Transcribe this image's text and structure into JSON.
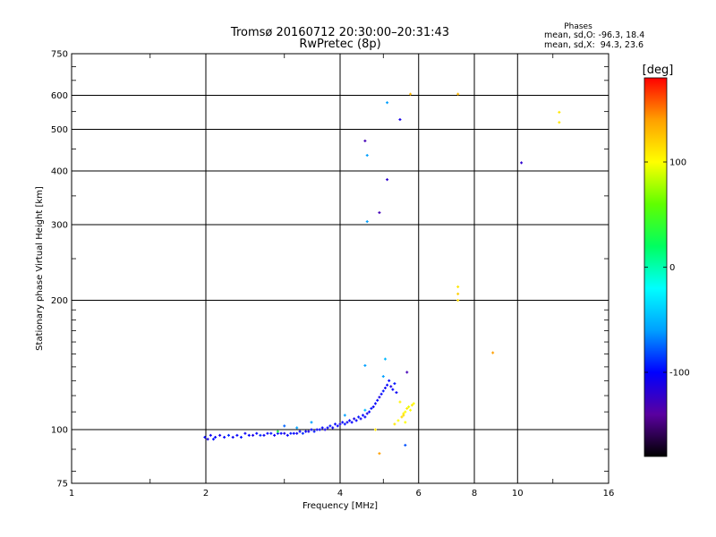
{
  "title_line1": "Tromsø 20160712 20:30:00–20:31:43",
  "title_line2": "RwPretec (8p)",
  "phases": {
    "title": "Phases",
    "line1": "mean, sd,O: -96.3, 18.4",
    "line2": "mean, sd,X:  94.3, 23.6"
  },
  "xlabel": "Frequency [MHz]",
  "ylabel": "Stationary phase Virtual Height [km]",
  "colorbar_label": "[deg]",
  "chart_data": {
    "type": "scatter",
    "xscale": "log",
    "yscale": "log",
    "xlim": [
      1,
      16
    ],
    "ylim": [
      75,
      750
    ],
    "grid": true,
    "xticks": [
      1,
      2,
      4,
      6,
      8,
      10,
      16
    ],
    "xtick_labels": [
      "1",
      "2",
      "4",
      "6",
      "8",
      "10",
      "16"
    ],
    "yticks": [
      75,
      100,
      200,
      300,
      400,
      500,
      600,
      750
    ],
    "ytick_labels": [
      "75",
      "100",
      "200",
      "300",
      "400",
      "500",
      "600",
      "750"
    ],
    "colorbar": {
      "range": [
        -180,
        180
      ],
      "ticks": [
        100,
        0,
        -100
      ],
      "tick_labels": [
        "100",
        "0",
        "-100"
      ],
      "colors": [
        "#000000",
        "#5a00a0",
        "#0000ff",
        "#00a0ff",
        "#00ffff",
        "#00ff60",
        "#60ff00",
        "#ffff00",
        "#ffa000",
        "#ff0000"
      ]
    },
    "points": [
      {
        "x": 1.99,
        "y": 96,
        "c": -100
      },
      {
        "x": 2.02,
        "y": 95,
        "c": -110
      },
      {
        "x": 2.05,
        "y": 97,
        "c": -105
      },
      {
        "x": 2.08,
        "y": 95,
        "c": -95
      },
      {
        "x": 2.1,
        "y": 96,
        "c": -100
      },
      {
        "x": 2.15,
        "y": 97,
        "c": -110
      },
      {
        "x": 2.2,
        "y": 96,
        "c": -100
      },
      {
        "x": 2.25,
        "y": 97,
        "c": -90
      },
      {
        "x": 2.3,
        "y": 96,
        "c": -105
      },
      {
        "x": 2.35,
        "y": 97,
        "c": -100
      },
      {
        "x": 2.4,
        "y": 96,
        "c": -95
      },
      {
        "x": 2.45,
        "y": 98,
        "c": -105
      },
      {
        "x": 2.5,
        "y": 97,
        "c": -100
      },
      {
        "x": 2.55,
        "y": 97,
        "c": -110
      },
      {
        "x": 2.6,
        "y": 98,
        "c": -100
      },
      {
        "x": 2.65,
        "y": 97,
        "c": -90
      },
      {
        "x": 2.7,
        "y": 97,
        "c": -105
      },
      {
        "x": 2.75,
        "y": 98,
        "c": -100
      },
      {
        "x": 2.8,
        "y": 98,
        "c": -95
      },
      {
        "x": 2.85,
        "y": 97,
        "c": -105
      },
      {
        "x": 2.9,
        "y": 98,
        "c": -100
      },
      {
        "x": 2.95,
        "y": 98,
        "c": -100
      },
      {
        "x": 3.0,
        "y": 98,
        "c": -110
      },
      {
        "x": 3.05,
        "y": 97,
        "c": -100
      },
      {
        "x": 3.1,
        "y": 98,
        "c": -95
      },
      {
        "x": 3.15,
        "y": 98,
        "c": -100
      },
      {
        "x": 3.2,
        "y": 98,
        "c": -105
      },
      {
        "x": 3.25,
        "y": 99,
        "c": -100
      },
      {
        "x": 3.3,
        "y": 98,
        "c": -90
      },
      {
        "x": 3.35,
        "y": 99,
        "c": -100
      },
      {
        "x": 3.4,
        "y": 99,
        "c": -110
      },
      {
        "x": 3.45,
        "y": 100,
        "c": -100
      },
      {
        "x": 3.5,
        "y": 99,
        "c": -95
      },
      {
        "x": 3.55,
        "y": 100,
        "c": -105
      },
      {
        "x": 3.6,
        "y": 100,
        "c": -100
      },
      {
        "x": 3.65,
        "y": 101,
        "c": -100
      },
      {
        "x": 3.7,
        "y": 100,
        "c": -110
      },
      {
        "x": 3.75,
        "y": 101,
        "c": -100
      },
      {
        "x": 3.8,
        "y": 102,
        "c": -95
      },
      {
        "x": 3.85,
        "y": 101,
        "c": -105
      },
      {
        "x": 3.9,
        "y": 103,
        "c": -100
      },
      {
        "x": 3.95,
        "y": 102,
        "c": -100
      },
      {
        "x": 4.0,
        "y": 103,
        "c": -110
      },
      {
        "x": 4.05,
        "y": 104,
        "c": -100
      },
      {
        "x": 4.1,
        "y": 103,
        "c": -95
      },
      {
        "x": 4.15,
        "y": 104,
        "c": -105
      },
      {
        "x": 4.2,
        "y": 105,
        "c": -100
      },
      {
        "x": 4.25,
        "y": 104,
        "c": -100
      },
      {
        "x": 4.3,
        "y": 106,
        "c": -110
      },
      {
        "x": 4.35,
        "y": 105,
        "c": -100
      },
      {
        "x": 4.4,
        "y": 107,
        "c": -95
      },
      {
        "x": 4.45,
        "y": 106,
        "c": -105
      },
      {
        "x": 4.5,
        "y": 108,
        "c": -100
      },
      {
        "x": 4.55,
        "y": 107,
        "c": -100
      },
      {
        "x": 4.6,
        "y": 109,
        "c": -110
      },
      {
        "x": 4.65,
        "y": 110,
        "c": -100
      },
      {
        "x": 4.7,
        "y": 112,
        "c": -95
      },
      {
        "x": 4.75,
        "y": 113,
        "c": -105
      },
      {
        "x": 4.8,
        "y": 115,
        "c": -100
      },
      {
        "x": 4.85,
        "y": 117,
        "c": -100
      },
      {
        "x": 4.9,
        "y": 119,
        "c": -110
      },
      {
        "x": 4.95,
        "y": 121,
        "c": -100
      },
      {
        "x": 5.0,
        "y": 123,
        "c": -95
      },
      {
        "x": 5.05,
        "y": 125,
        "c": -105
      },
      {
        "x": 5.1,
        "y": 127,
        "c": -100
      },
      {
        "x": 5.15,
        "y": 130,
        "c": -100
      },
      {
        "x": 5.2,
        "y": 126,
        "c": -110
      },
      {
        "x": 5.25,
        "y": 124,
        "c": -100
      },
      {
        "x": 5.3,
        "y": 128,
        "c": -95
      },
      {
        "x": 5.35,
        "y": 122,
        "c": -105
      },
      {
        "x": 3.2,
        "y": 101,
        "c": -60
      },
      {
        "x": 3.45,
        "y": 104,
        "c": -60
      },
      {
        "x": 3.0,
        "y": 102,
        "c": -75
      },
      {
        "x": 2.9,
        "y": 99,
        "c": 30
      },
      {
        "x": 4.1,
        "y": 108,
        "c": -60
      },
      {
        "x": 4.55,
        "y": 111,
        "c": -50
      },
      {
        "x": 4.8,
        "y": 100,
        "c": 110
      },
      {
        "x": 5.3,
        "y": 103,
        "c": 110
      },
      {
        "x": 5.4,
        "y": 105,
        "c": 100
      },
      {
        "x": 5.5,
        "y": 107,
        "c": 115
      },
      {
        "x": 5.55,
        "y": 109,
        "c": 105
      },
      {
        "x": 5.6,
        "y": 110,
        "c": 100
      },
      {
        "x": 5.65,
        "y": 112,
        "c": 110
      },
      {
        "x": 5.7,
        "y": 113,
        "c": 95
      },
      {
        "x": 5.75,
        "y": 111,
        "c": 100
      },
      {
        "x": 5.8,
        "y": 114,
        "c": 108
      },
      {
        "x": 5.85,
        "y": 115,
        "c": 100
      },
      {
        "x": 5.45,
        "y": 116,
        "c": 105
      },
      {
        "x": 5.55,
        "y": 108,
        "c": 115
      },
      {
        "x": 5.6,
        "y": 104,
        "c": 100
      },
      {
        "x": 4.55,
        "y": 141,
        "c": -60
      },
      {
        "x": 5.0,
        "y": 133,
        "c": -60
      },
      {
        "x": 5.05,
        "y": 146,
        "c": -50
      },
      {
        "x": 5.65,
        "y": 136,
        "c": -130
      },
      {
        "x": 5.6,
        "y": 92,
        "c": -80
      },
      {
        "x": 4.9,
        "y": 88,
        "c": 140
      },
      {
        "x": 4.55,
        "y": 470,
        "c": -130
      },
      {
        "x": 4.6,
        "y": 435,
        "c": -60
      },
      {
        "x": 5.1,
        "y": 577,
        "c": -60
      },
      {
        "x": 5.45,
        "y": 527,
        "c": -110
      },
      {
        "x": 5.1,
        "y": 382,
        "c": -120
      },
      {
        "x": 4.9,
        "y": 320,
        "c": -130
      },
      {
        "x": 4.6,
        "y": 305,
        "c": -60
      },
      {
        "x": 5.75,
        "y": 604,
        "c": 130
      },
      {
        "x": 7.35,
        "y": 604,
        "c": 130
      },
      {
        "x": 7.35,
        "y": 215,
        "c": 110
      },
      {
        "x": 7.35,
        "y": 207,
        "c": 120
      },
      {
        "x": 7.35,
        "y": 200,
        "c": 115
      },
      {
        "x": 8.8,
        "y": 151,
        "c": 140
      },
      {
        "x": 10.2,
        "y": 418,
        "c": -120
      },
      {
        "x": 12.4,
        "y": 548,
        "c": 110
      },
      {
        "x": 12.4,
        "y": 519,
        "c": 110
      }
    ]
  }
}
